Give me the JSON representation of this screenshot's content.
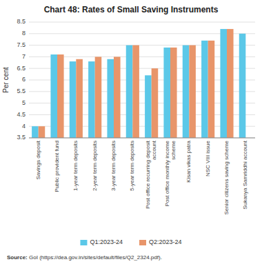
{
  "chart_data": {
    "type": "bar",
    "title": "Chart 48: Rates of Small Saving Instruments",
    "y_label": "Per cent",
    "categories": [
      "Savings deposit",
      "Public provident fund",
      "1-year term deposits",
      "2-year term deposits",
      "3-year term deposits",
      "5-year term deposits",
      "Post office recurring deposit\naccount",
      "Post office monthly income\nscheme",
      "Kisan vikas patra",
      "NSC VIII issue",
      "Senior citizens saving scheme",
      "Sukanya Samriddhi account"
    ],
    "series": [
      {
        "name": "Q1:2023-24",
        "color": "#5BC8E8",
        "values": [
          4.0,
          7.1,
          6.8,
          6.8,
          6.9,
          7.5,
          6.2,
          7.4,
          7.5,
          7.7,
          8.2,
          8.0
        ]
      },
      {
        "name": "Q2:2023-24",
        "color": "#E8956A",
        "values": [
          4.0,
          7.1,
          6.9,
          7.0,
          7.0,
          7.5,
          6.5,
          7.4,
          7.5,
          7.7,
          8.2,
          null
        ]
      }
    ],
    "ylim": [
      3.5,
      8.5
    ],
    "yticks": [
      3.5,
      4,
      4.5,
      5,
      5.5,
      6,
      6.5,
      7,
      7.5,
      8,
      8.5
    ],
    "grid": true,
    "legend": "bottom",
    "annotations": [
      "Source:",
      " GoI (https://dea.gov.in/sites/default/files/Q2_2324.pdf)."
    ]
  }
}
